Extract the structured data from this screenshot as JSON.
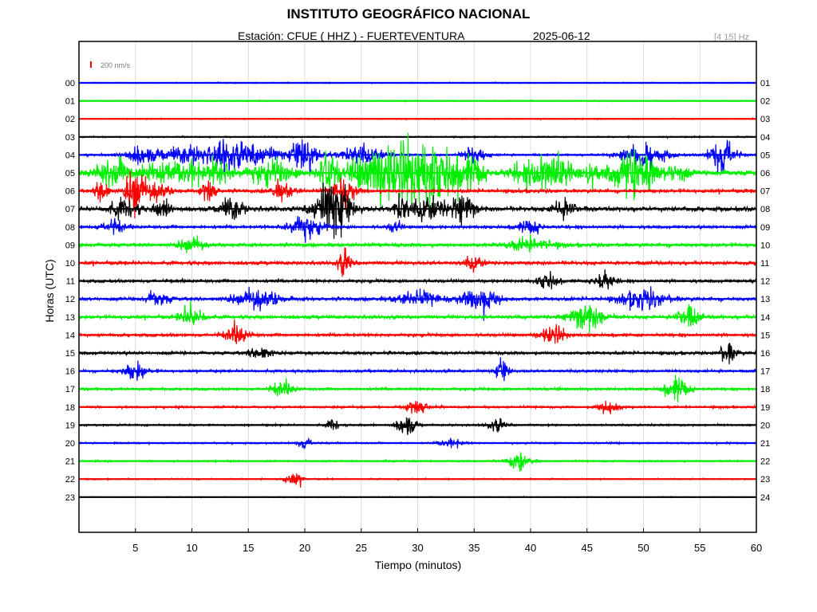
{
  "header": {
    "title": "INSTITUTO GEOGRÁFICO NACIONAL",
    "station": "Estación:  CFUE ( HHZ ) - FUERTEVENTURA",
    "date": "2025-06-12",
    "filter": "[4 15] Hz"
  },
  "chart_data": {
    "type": "line",
    "title": "INSTITUTO GEOGRÁFICO NACIONAL",
    "xlabel": "Tiempo (minutos)",
    "ylabel": "Horas (UTC)",
    "xlim": [
      0,
      60
    ],
    "x_ticks": [
      5,
      10,
      15,
      20,
      25,
      30,
      35,
      40,
      45,
      50,
      55,
      60
    ],
    "grid": true,
    "scale_bar": "200 nm/s",
    "left_labels": [
      "00",
      "01",
      "02",
      "03",
      "04",
      "05",
      "06",
      "07",
      "08",
      "09",
      "10",
      "11",
      "12",
      "13",
      "14",
      "15",
      "16",
      "17",
      "18",
      "19",
      "20",
      "21",
      "22",
      "23"
    ],
    "right_labels": [
      "01",
      "02",
      "03",
      "04",
      "05",
      "06",
      "07",
      "08",
      "09",
      "10",
      "11",
      "12",
      "13",
      "14",
      "15",
      "16",
      "17",
      "18",
      "19",
      "20",
      "21",
      "22",
      "23",
      "24"
    ],
    "color_cycle": [
      "#0000ff",
      "#00ee00",
      "#ff0000",
      "#000000"
    ],
    "trace_colors": [
      "#0000ff",
      "#00ee00",
      "#ff0000",
      "#000000",
      "#0000ff",
      "#00ee00",
      "#ff0000",
      "#000000",
      "#0000ff",
      "#00ee00",
      "#ff0000",
      "#000000",
      "#0000ff",
      "#00ee00",
      "#ff0000",
      "#000000",
      "#0000ff",
      "#00ee00",
      "#ff0000",
      "#000000",
      "#0000ff",
      "#00ee00",
      "#ff0000",
      "#000000"
    ],
    "noise_level": [
      0.1,
      0.1,
      0.1,
      0.12,
      0.2,
      0.5,
      0.35,
      0.45,
      0.3,
      0.35,
      0.35,
      0.3,
      0.35,
      0.35,
      0.3,
      0.3,
      0.25,
      0.25,
      0.2,
      0.18,
      0.15,
      0.15,
      0.12,
      0.08
    ],
    "events": [
      [],
      [],
      [],
      [],
      [
        [
          5.5,
          1.5,
          4
        ],
        [
          9.5,
          2,
          4
        ],
        [
          13,
          1,
          4
        ],
        [
          15,
          3,
          5
        ],
        [
          20,
          1,
          9
        ],
        [
          25,
          2,
          4
        ],
        [
          35,
          1,
          4
        ],
        [
          50,
          2,
          5
        ],
        [
          57,
          1,
          10
        ]
      ],
      [
        [
          3,
          1.5,
          6
        ],
        [
          7,
          2,
          5
        ],
        [
          10,
          1,
          5
        ],
        [
          12.5,
          1,
          6
        ],
        [
          17,
          2,
          5
        ],
        [
          22,
          1,
          8
        ],
        [
          26,
          2,
          8
        ],
        [
          28.5,
          2,
          10
        ],
        [
          31.5,
          2.5,
          12
        ],
        [
          35,
          1,
          5
        ],
        [
          40,
          2,
          4
        ],
        [
          42,
          1.5,
          8
        ],
        [
          45,
          1,
          4
        ],
        [
          49,
          2,
          10
        ],
        [
          53,
          1,
          4
        ]
      ],
      [
        [
          2,
          0.5,
          8
        ],
        [
          5,
          0.8,
          10
        ],
        [
          7,
          1,
          4
        ],
        [
          11.5,
          0.6,
          5
        ],
        [
          18,
          1,
          4
        ],
        [
          23.5,
          1,
          6
        ]
      ],
      [
        [
          4,
          1.2,
          4
        ],
        [
          7.5,
          0.8,
          4
        ],
        [
          13.5,
          1,
          5
        ],
        [
          22.5,
          1.5,
          14
        ],
        [
          28.5,
          0.6,
          6
        ],
        [
          31,
          1.5,
          5
        ],
        [
          34,
          1,
          7
        ],
        [
          43,
          1,
          4
        ]
      ],
      [
        [
          3,
          1,
          3
        ],
        [
          20,
          1.5,
          5
        ],
        [
          28,
          0.5,
          3
        ],
        [
          40,
          1,
          3
        ]
      ],
      [
        [
          10,
          1,
          3
        ],
        [
          40,
          2,
          3
        ]
      ],
      [
        [
          23.5,
          0.6,
          6
        ],
        [
          35,
          0.8,
          3
        ]
      ],
      [
        [
          41.5,
          0.8,
          4
        ],
        [
          46.5,
          0.8,
          5
        ]
      ],
      [
        [
          7,
          1,
          3
        ],
        [
          16,
          2,
          4
        ],
        [
          30,
          2,
          3
        ],
        [
          35.5,
          1.5,
          6
        ],
        [
          50,
          2,
          4
        ]
      ],
      [
        [
          10,
          1,
          5
        ],
        [
          45,
          1.5,
          6
        ],
        [
          54,
          1,
          5
        ]
      ],
      [
        [
          14,
          1,
          4
        ],
        [
          42,
          1,
          5
        ]
      ],
      [
        [
          16,
          1,
          3
        ],
        [
          57.5,
          0.7,
          5
        ]
      ],
      [
        [
          5,
          1,
          4
        ],
        [
          37.5,
          0.6,
          5
        ]
      ],
      [
        [
          18,
          1,
          3
        ],
        [
          53,
          1,
          5
        ]
      ],
      [
        [
          30,
          1,
          3
        ],
        [
          47,
          1,
          3
        ]
      ],
      [
        [
          22.5,
          0.5,
          3
        ],
        [
          29,
          0.8,
          5
        ],
        [
          37,
          0.8,
          3
        ]
      ],
      [
        [
          20,
          0.6,
          3
        ],
        [
          33,
          1,
          2
        ]
      ],
      [
        [
          39,
          1,
          4
        ]
      ],
      [
        [
          19,
          0.8,
          3
        ]
      ],
      []
    ]
  }
}
